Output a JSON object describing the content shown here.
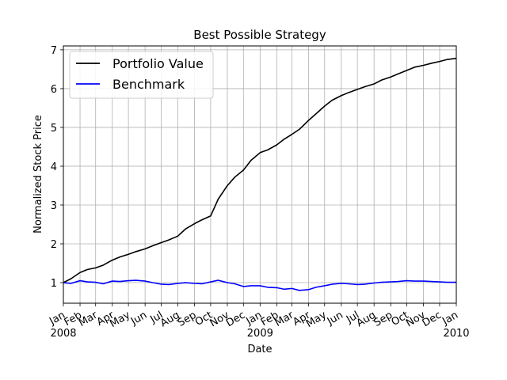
{
  "chart_data": {
    "type": "line",
    "title": "Best Possible Strategy",
    "xlabel": "Date",
    "ylabel": "Normalized Stock Price",
    "x_range": [
      "2008-01-01",
      "2010-01-01"
    ],
    "ylim": [
      0.47,
      7.1
    ],
    "yticks": [
      1,
      2,
      3,
      4,
      5,
      6,
      7
    ],
    "grid": true,
    "legend_position": "upper left",
    "xtick_labels": [
      {
        "date": "2008-01-01",
        "label": "Jan",
        "sub": "2008"
      },
      {
        "date": "2008-02-01",
        "label": "Feb",
        "sub": ""
      },
      {
        "date": "2008-03-01",
        "label": "Mar",
        "sub": ""
      },
      {
        "date": "2008-04-01",
        "label": "Apr",
        "sub": ""
      },
      {
        "date": "2008-05-01",
        "label": "May",
        "sub": ""
      },
      {
        "date": "2008-06-01",
        "label": "Jun",
        "sub": ""
      },
      {
        "date": "2008-07-01",
        "label": "Jul",
        "sub": ""
      },
      {
        "date": "2008-08-01",
        "label": "Aug",
        "sub": ""
      },
      {
        "date": "2008-09-01",
        "label": "Sep",
        "sub": ""
      },
      {
        "date": "2008-10-01",
        "label": "Oct",
        "sub": ""
      },
      {
        "date": "2008-11-01",
        "label": "Nov",
        "sub": ""
      },
      {
        "date": "2008-12-01",
        "label": "Dec",
        "sub": ""
      },
      {
        "date": "2009-01-01",
        "label": "Jan",
        "sub": "2009"
      },
      {
        "date": "2009-02-01",
        "label": "Feb",
        "sub": ""
      },
      {
        "date": "2009-03-01",
        "label": "Mar",
        "sub": ""
      },
      {
        "date": "2009-04-01",
        "label": "Apr",
        "sub": ""
      },
      {
        "date": "2009-05-01",
        "label": "May",
        "sub": ""
      },
      {
        "date": "2009-06-01",
        "label": "Jun",
        "sub": ""
      },
      {
        "date": "2009-07-01",
        "label": "Jul",
        "sub": ""
      },
      {
        "date": "2009-08-01",
        "label": "Aug",
        "sub": ""
      },
      {
        "date": "2009-09-01",
        "label": "Sep",
        "sub": ""
      },
      {
        "date": "2009-10-01",
        "label": "Oct",
        "sub": ""
      },
      {
        "date": "2009-11-01",
        "label": "Nov",
        "sub": ""
      },
      {
        "date": "2009-12-01",
        "label": "Dec",
        "sub": ""
      },
      {
        "date": "2010-01-01",
        "label": "Jan",
        "sub": "2010"
      }
    ],
    "series": [
      {
        "name": "Portfolio Value",
        "color": "#000000",
        "x": [
          "2008-01-01",
          "2008-01-15",
          "2008-02-01",
          "2008-02-15",
          "2008-03-01",
          "2008-03-15",
          "2008-04-01",
          "2008-04-15",
          "2008-05-01",
          "2008-05-15",
          "2008-06-01",
          "2008-06-15",
          "2008-07-01",
          "2008-07-15",
          "2008-08-01",
          "2008-08-15",
          "2008-09-01",
          "2008-09-15",
          "2008-10-01",
          "2008-10-15",
          "2008-11-01",
          "2008-11-15",
          "2008-12-01",
          "2008-12-15",
          "2009-01-01",
          "2009-01-15",
          "2009-02-01",
          "2009-02-15",
          "2009-03-01",
          "2009-03-15",
          "2009-04-01",
          "2009-04-15",
          "2009-05-01",
          "2009-05-15",
          "2009-06-01",
          "2009-06-15",
          "2009-07-01",
          "2009-07-15",
          "2009-08-01",
          "2009-08-15",
          "2009-09-01",
          "2009-09-15",
          "2009-10-01",
          "2009-10-15",
          "2009-11-01",
          "2009-11-15",
          "2009-12-01",
          "2009-12-15",
          "2010-01-01"
        ],
        "values": [
          1.0,
          1.1,
          1.26,
          1.34,
          1.38,
          1.45,
          1.58,
          1.66,
          1.73,
          1.8,
          1.87,
          1.95,
          2.03,
          2.1,
          2.2,
          2.38,
          2.52,
          2.62,
          2.72,
          3.15,
          3.5,
          3.72,
          3.9,
          4.15,
          4.35,
          4.42,
          4.55,
          4.7,
          4.82,
          4.95,
          5.18,
          5.35,
          5.55,
          5.7,
          5.82,
          5.9,
          5.98,
          6.05,
          6.12,
          6.22,
          6.3,
          6.38,
          6.47,
          6.55,
          6.6,
          6.65,
          6.7,
          6.75,
          6.78
        ]
      },
      {
        "name": "Benchmark",
        "color": "#0000ff",
        "x": [
          "2008-01-01",
          "2008-01-15",
          "2008-02-01",
          "2008-02-15",
          "2008-03-01",
          "2008-03-15",
          "2008-04-01",
          "2008-04-15",
          "2008-05-01",
          "2008-05-15",
          "2008-06-01",
          "2008-06-15",
          "2008-07-01",
          "2008-07-15",
          "2008-08-01",
          "2008-08-15",
          "2008-09-01",
          "2008-09-15",
          "2008-10-01",
          "2008-10-15",
          "2008-11-01",
          "2008-11-15",
          "2008-12-01",
          "2008-12-15",
          "2009-01-01",
          "2009-01-15",
          "2009-02-01",
          "2009-02-15",
          "2009-03-01",
          "2009-03-15",
          "2009-04-01",
          "2009-04-15",
          "2009-05-01",
          "2009-05-15",
          "2009-06-01",
          "2009-06-15",
          "2009-07-01",
          "2009-07-15",
          "2009-08-01",
          "2009-08-15",
          "2009-09-01",
          "2009-09-15",
          "2009-10-01",
          "2009-10-15",
          "2009-11-01",
          "2009-11-15",
          "2009-12-01",
          "2009-12-15",
          "2010-01-01"
        ],
        "values": [
          1.0,
          0.98,
          1.05,
          1.02,
          1.01,
          0.97,
          1.04,
          1.03,
          1.05,
          1.06,
          1.04,
          1.0,
          0.96,
          0.95,
          0.98,
          1.0,
          0.98,
          0.97,
          1.02,
          1.06,
          1.0,
          0.97,
          0.9,
          0.92,
          0.92,
          0.88,
          0.87,
          0.83,
          0.85,
          0.8,
          0.82,
          0.88,
          0.92,
          0.96,
          0.98,
          0.97,
          0.95,
          0.96,
          0.99,
          1.01,
          1.02,
          1.03,
          1.05,
          1.04,
          1.04,
          1.03,
          1.02,
          1.01,
          1.01
        ]
      }
    ]
  }
}
